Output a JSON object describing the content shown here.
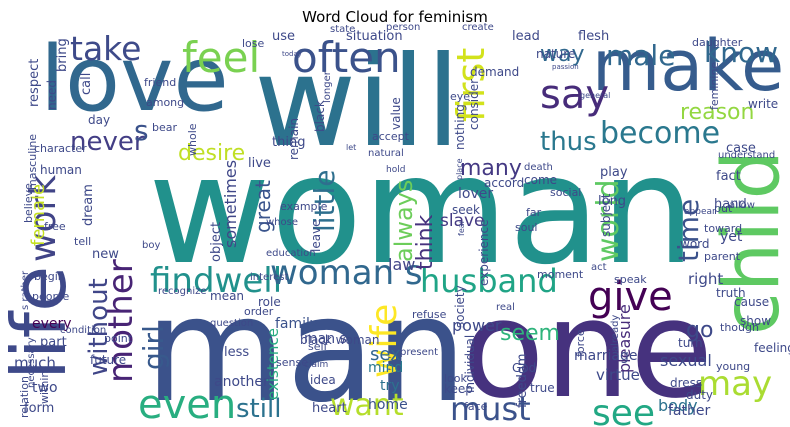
{
  "title": "Word Cloud for feminism",
  "words": [
    {
      "t": "woman",
      "c": "#21918c"
    },
    {
      "t": "man",
      "c": "#3b528b"
    },
    {
      "t": "one",
      "c": "#46327e"
    },
    {
      "t": "love",
      "c": "#31688e"
    },
    {
      "t": "will",
      "c": "#2c728e"
    },
    {
      "t": "make",
      "c": "#365c8d"
    },
    {
      "t": "life",
      "c": "#3e4989"
    },
    {
      "t": "child",
      "c": "#5ec962"
    },
    {
      "t": "findwell",
      "c": "#21918c"
    },
    {
      "t": "husband",
      "c": "#20a486"
    },
    {
      "t": "give",
      "c": "#440154"
    },
    {
      "t": "feel",
      "c": "#7ad151"
    },
    {
      "t": "often",
      "c": "#3b528b"
    },
    {
      "t": "take",
      "c": "#3e4a89"
    },
    {
      "t": "say",
      "c": "#472c7a"
    },
    {
      "t": "become",
      "c": "#2a788e"
    },
    {
      "t": "male",
      "c": "#31688e"
    },
    {
      "t": "know",
      "c": "#31688e"
    },
    {
      "t": "first",
      "c": "#d2e21b"
    },
    {
      "t": "thus",
      "c": "#2a788e"
    },
    {
      "t": "woman s",
      "c": "#31688e"
    },
    {
      "t": "even",
      "c": "#28ae80"
    },
    {
      "t": "may",
      "c": "#aadc32"
    },
    {
      "t": "must",
      "c": "#3b528b"
    },
    {
      "t": "see",
      "c": "#22a884"
    },
    {
      "t": "want",
      "c": "#b5de2b"
    },
    {
      "t": "mother",
      "c": "#482475"
    },
    {
      "t": "work",
      "c": "#414487"
    },
    {
      "t": "world",
      "c": "#5ec962"
    },
    {
      "t": "time",
      "c": "#3b528b"
    },
    {
      "t": "wife",
      "c": "#fde725"
    },
    {
      "t": "still",
      "c": "#2c728e"
    },
    {
      "t": "never",
      "c": "#433e85"
    },
    {
      "t": "without",
      "c": "#404688"
    },
    {
      "t": "girl",
      "c": "#38598c"
    },
    {
      "t": "many",
      "c": "#443983"
    },
    {
      "t": "think",
      "c": "#46327e"
    },
    {
      "t": "always",
      "c": "#6ccd5a"
    },
    {
      "t": "little",
      "c": "#2e6f8e"
    },
    {
      "t": "sex",
      "c": "#32658e"
    },
    {
      "t": "seem",
      "c": "#2fb47c"
    },
    {
      "t": "body",
      "c": "#2c728e"
    },
    {
      "t": "go",
      "c": "#3e4989"
    },
    {
      "t": "sexual",
      "c": "#3e4989"
    },
    {
      "t": "desire",
      "c": "#c0df25"
    },
    {
      "t": "reason",
      "c": "#93d741"
    },
    {
      "t": "way",
      "c": "#31688e"
    },
    {
      "t": "great",
      "c": "#3a548c"
    },
    {
      "t": "female",
      "c": "#c5e021"
    },
    {
      "t": "s",
      "c": "#3b528b"
    },
    {
      "t": "man s",
      "c": "#3e4989"
    },
    {
      "t": "sometimes",
      "c": "#3f4788"
    },
    {
      "t": "slave",
      "c": "#443983"
    },
    {
      "t": "law",
      "c": "#414487"
    },
    {
      "t": "family",
      "c": "#3b528b"
    },
    {
      "t": "existence",
      "c": "#27ad81"
    },
    {
      "t": "mind",
      "c": "#2a788e"
    },
    {
      "t": "try",
      "c": "#2c728e"
    },
    {
      "t": "home",
      "c": "#3b528b"
    },
    {
      "t": "power",
      "c": "#3e4989"
    },
    {
      "t": "pleasure",
      "c": "#472c7a"
    },
    {
      "t": "marriage",
      "c": "#3e4989"
    },
    {
      "t": "virtue",
      "c": "#3e4989"
    },
    {
      "t": "father",
      "c": "#3e4989"
    },
    {
      "t": "heart",
      "c": "#3e4989"
    },
    {
      "t": "much",
      "c": "#3e4989"
    },
    {
      "t": "two",
      "c": "#3e4989"
    },
    {
      "t": "form",
      "c": "#3e4989"
    },
    {
      "t": "every",
      "c": "#440154"
    },
    {
      "t": "part",
      "c": "#3e4989"
    },
    {
      "t": "right",
      "c": "#3e4989"
    },
    {
      "t": "thing",
      "c": "#3e4989"
    },
    {
      "t": "live",
      "c": "#3e4989"
    },
    {
      "t": "hand",
      "c": "#3e4989"
    },
    {
      "t": "fact",
      "c": "#3e4989"
    },
    {
      "t": "yet",
      "c": "#3e4989"
    },
    {
      "t": "case",
      "c": "#3e4989"
    },
    {
      "t": "play",
      "c": "#3e4989"
    },
    {
      "t": "use",
      "c": "#3e4989"
    },
    {
      "t": "situation",
      "c": "#3e4989"
    },
    {
      "t": "lead",
      "c": "#3e4989"
    },
    {
      "t": "flesh",
      "c": "#3e4989"
    },
    {
      "t": "nature",
      "c": "#3e4989"
    },
    {
      "t": "demand",
      "c": "#3e4989"
    },
    {
      "t": "respect",
      "c": "#3e4989"
    },
    {
      "t": "bring",
      "c": "#3e4989"
    },
    {
      "t": "call",
      "c": "#3e4989"
    },
    {
      "t": "need",
      "c": "#3e4989"
    },
    {
      "t": "day",
      "c": "#3e4989"
    },
    {
      "t": "human",
      "c": "#3e4989"
    },
    {
      "t": "whole",
      "c": "#3e4989"
    },
    {
      "t": "remain",
      "c": "#3e4989"
    },
    {
      "t": "black",
      "c": "#3e4989"
    },
    {
      "t": "consider",
      "c": "#3e4989"
    },
    {
      "t": "nothing",
      "c": "#3e4989"
    },
    {
      "t": "lover",
      "c": "#3e4989"
    },
    {
      "t": "seek",
      "c": "#3e4989"
    },
    {
      "t": "come",
      "c": "#3e4989"
    },
    {
      "t": "long",
      "c": "#3e4989"
    },
    {
      "t": "subject",
      "c": "#3e4989"
    },
    {
      "t": "word",
      "c": "#3e4989"
    },
    {
      "t": "dream",
      "c": "#3e4989"
    },
    {
      "t": "role",
      "c": "#3e4989"
    },
    {
      "t": "object",
      "c": "#3e4989"
    },
    {
      "t": "leave",
      "c": "#3e4989"
    },
    {
      "t": "mean",
      "c": "#3e4989"
    },
    {
      "t": "less",
      "c": "#3e4989"
    },
    {
      "t": "another",
      "c": "#3e4989"
    },
    {
      "t": "new",
      "c": "#3e4989"
    },
    {
      "t": "God",
      "c": "#3e4989"
    },
    {
      "t": "freedom",
      "c": "#3e4989"
    },
    {
      "t": "society",
      "c": "#3e4989"
    },
    {
      "t": "individual",
      "c": "#3e4989"
    },
    {
      "t": "keep",
      "c": "#3e4989"
    },
    {
      "t": "experience",
      "c": "#3e4989"
    },
    {
      "t": "idea",
      "c": "#3e4989"
    },
    {
      "t": "black woman",
      "c": "#3e4989"
    },
    {
      "t": "future",
      "c": "#3e4989"
    },
    {
      "t": "point",
      "c": "#3e4989"
    },
    {
      "t": "feeling",
      "c": "#3e4989"
    },
    {
      "t": "show",
      "c": "#3e4989"
    },
    {
      "t": "young",
      "c": "#3e4989"
    },
    {
      "t": "duty",
      "c": "#3e4989"
    },
    {
      "t": "dress",
      "c": "#3e4989"
    },
    {
      "t": "though",
      "c": "#3e4989"
    },
    {
      "t": "cause",
      "c": "#3e4989"
    },
    {
      "t": "turn",
      "c": "#3e4989"
    },
    {
      "t": "true",
      "c": "#3e4989"
    },
    {
      "t": "face",
      "c": "#3e4989"
    },
    {
      "t": "relation",
      "c": "#3e4989"
    },
    {
      "t": "within",
      "c": "#3e4989"
    },
    {
      "t": "necessary",
      "c": "#3e4989"
    },
    {
      "t": "people",
      "c": "#3e4989"
    },
    {
      "t": "begin",
      "c": "#3e4989"
    },
    {
      "t": "tell",
      "c": "#3e4989"
    },
    {
      "t": "free",
      "c": "#3e4989"
    },
    {
      "t": "believe",
      "c": "#3e4989"
    },
    {
      "t": "masculine",
      "c": "#3e4989"
    },
    {
      "t": "character",
      "c": "#3e4989"
    },
    {
      "t": "friend",
      "c": "#3e4989"
    },
    {
      "t": "among",
      "c": "#3e4989"
    },
    {
      "t": "bear",
      "c": "#3e4989"
    },
    {
      "t": "lose",
      "c": "#3e4989"
    },
    {
      "t": "state",
      "c": "#3e4989"
    },
    {
      "t": "person",
      "c": "#3e4989"
    },
    {
      "t": "create",
      "c": "#3e4989"
    },
    {
      "t": "today",
      "c": "#3e4989"
    },
    {
      "t": "longer",
      "c": "#3e4989"
    },
    {
      "t": "passion",
      "c": "#3e4989"
    },
    {
      "t": "daughter",
      "c": "#3e4989"
    },
    {
      "t": "write",
      "c": "#3e4989"
    },
    {
      "t": "feminine",
      "c": "#3e4989"
    },
    {
      "t": "general",
      "c": "#3e4989"
    },
    {
      "t": "eye",
      "c": "#3e4989"
    },
    {
      "t": "value",
      "c": "#3e4989"
    },
    {
      "t": "accept",
      "c": "#3e4989"
    },
    {
      "t": "natural",
      "c": "#3e4989"
    },
    {
      "t": "let",
      "c": "#3e4989"
    },
    {
      "t": "hold",
      "c": "#3e4989"
    },
    {
      "t": "place",
      "c": "#3e4989"
    },
    {
      "t": "accord",
      "c": "#3e4989"
    },
    {
      "t": "death",
      "c": "#3e4989"
    },
    {
      "t": "social",
      "c": "#3e4989"
    },
    {
      "t": "far",
      "c": "#3e4989"
    },
    {
      "t": "soul",
      "c": "#3e4989"
    },
    {
      "t": "fear",
      "c": "#3e4989"
    },
    {
      "t": "example",
      "c": "#3e4989"
    },
    {
      "t": "whose",
      "c": "#3e4989"
    },
    {
      "t": "education",
      "c": "#3e4989"
    },
    {
      "t": "interest",
      "c": "#3e4989"
    },
    {
      "t": "order",
      "c": "#3e4989"
    },
    {
      "t": "self",
      "c": "#3e4989"
    },
    {
      "t": "refuse",
      "c": "#3e4989"
    },
    {
      "t": "real",
      "c": "#3e4989"
    },
    {
      "t": "moment",
      "c": "#3e4989"
    },
    {
      "t": "act",
      "c": "#3e4989"
    },
    {
      "t": "speak",
      "c": "#3e4989"
    },
    {
      "t": "appear",
      "c": "#3e4989"
    },
    {
      "t": "toward",
      "c": "#3e4989"
    },
    {
      "t": "put",
      "c": "#3e4989"
    },
    {
      "t": "understand",
      "c": "#3e4989"
    },
    {
      "t": "allow",
      "c": "#3e4989"
    },
    {
      "t": "parent",
      "c": "#3e4989"
    },
    {
      "t": "truth",
      "c": "#3e4989"
    },
    {
      "t": "force",
      "c": "#3e4989"
    },
    {
      "t": "already",
      "c": "#3e4989"
    },
    {
      "t": "present",
      "c": "#3e4989"
    },
    {
      "t": "sense",
      "c": "#3e4989"
    },
    {
      "t": "claim",
      "c": "#3e4989"
    },
    {
      "t": "question",
      "c": "#3e4989"
    },
    {
      "t": "condition",
      "c": "#3e4989"
    },
    {
      "t": "recognize",
      "c": "#3e4989"
    },
    {
      "t": "boy",
      "c": "#3e4989"
    },
    {
      "t": "look",
      "c": "#3e4989"
    },
    {
      "t": "s rather",
      "c": "#3e4989"
    },
    {
      "t": "alone",
      "c": "#3e4989"
    }
  ]
}
